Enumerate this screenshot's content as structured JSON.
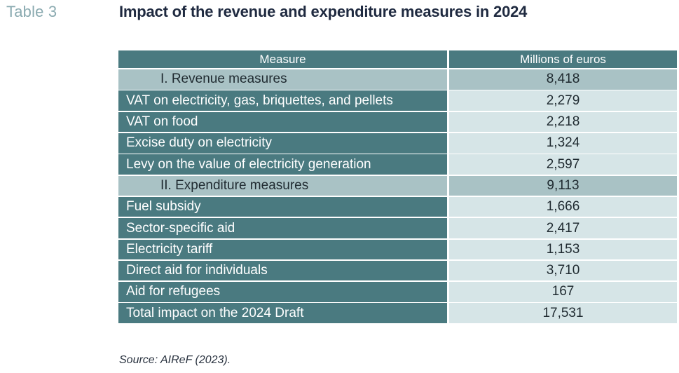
{
  "table_label": "Table 3",
  "title": "Impact of the revenue and expenditure measures in 2024",
  "table": {
    "headers": [
      "Measure",
      "Millions of euros"
    ],
    "rows": [
      {
        "measure": "I. Revenue measures",
        "value": "8,418",
        "type": "section"
      },
      {
        "measure": "VAT on electricity, gas, briquettes, and pellets",
        "value": "2,279",
        "type": "item"
      },
      {
        "measure": "VAT on food",
        "value": "2,218",
        "type": "item"
      },
      {
        "measure": "Excise duty on electricity",
        "value": "1,324",
        "type": "item"
      },
      {
        "measure": "Levy on the value of electricity generation",
        "value": "2,597",
        "type": "item"
      },
      {
        "measure": "II. Expenditure measures",
        "value": "9,113",
        "type": "section"
      },
      {
        "measure": "Fuel subsidy",
        "value": "1,666",
        "type": "item"
      },
      {
        "measure": "Sector-specific aid",
        "value": "2,417",
        "type": "item"
      },
      {
        "measure": "Electricity tariff",
        "value": "1,153",
        "type": "item"
      },
      {
        "measure": "Direct aid for individuals",
        "value": "3,710",
        "type": "item"
      },
      {
        "measure": "Aid for refugees",
        "value": "167",
        "type": "item"
      },
      {
        "measure": "Total impact on the 2024 Draft",
        "value": "17,531",
        "type": "item"
      }
    ]
  },
  "source": "Source: AIReF (2023).",
  "colors": {
    "dark_teal": "#4a7a80",
    "light_teal": "#d6e5e7",
    "section_teal": "#a9c2c5",
    "title": "#1f2a40",
    "table_label": "#8aaab0"
  }
}
